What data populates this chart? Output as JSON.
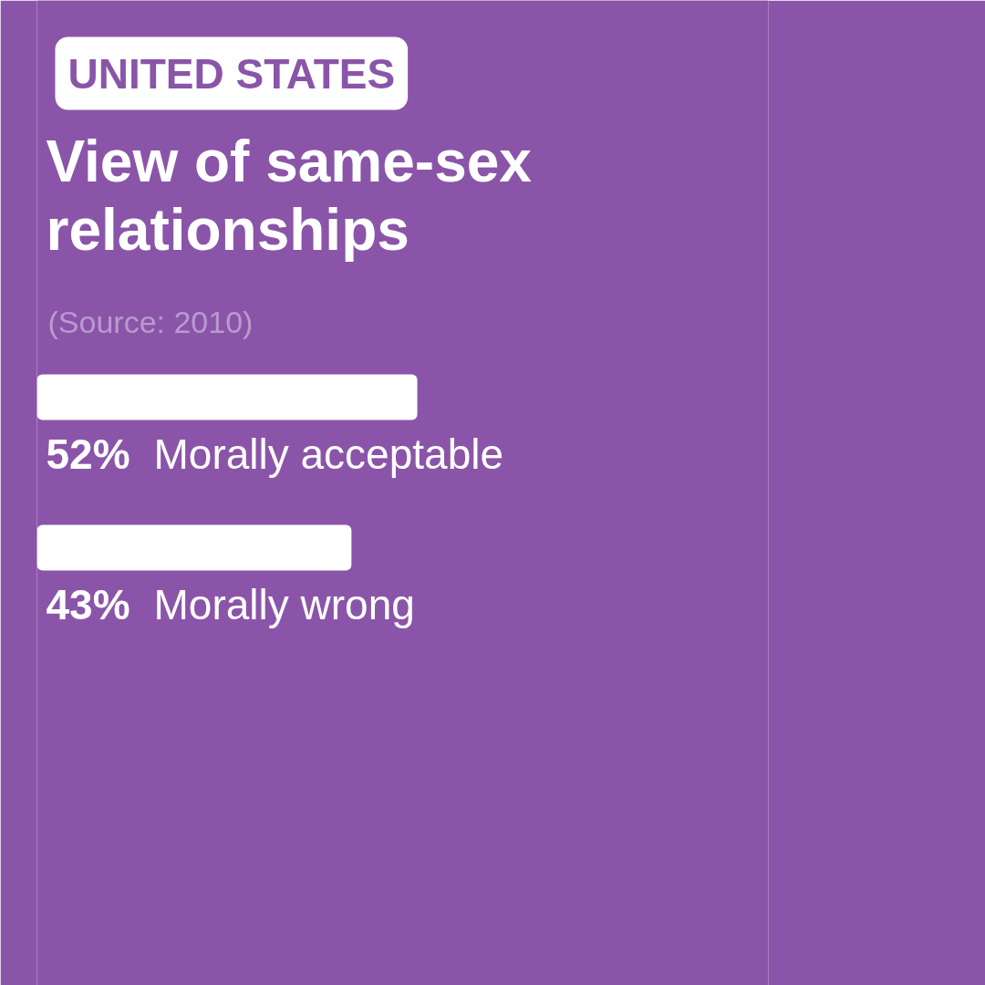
{
  "chart_data": {
    "type": "bar",
    "orientation": "horizontal",
    "subtitle": "UNITED STATES",
    "title": "View of same-sex relationships",
    "annotations": [
      "(Source: 2010)"
    ],
    "categories": [
      "Morally acceptable",
      "Morally wrong"
    ],
    "values": [
      52,
      43
    ],
    "value_labels": [
      "52%",
      "43%"
    ],
    "color": "#ffffff",
    "xlim": [
      0,
      100
    ],
    "tick_labels": false,
    "grid": false
  }
}
